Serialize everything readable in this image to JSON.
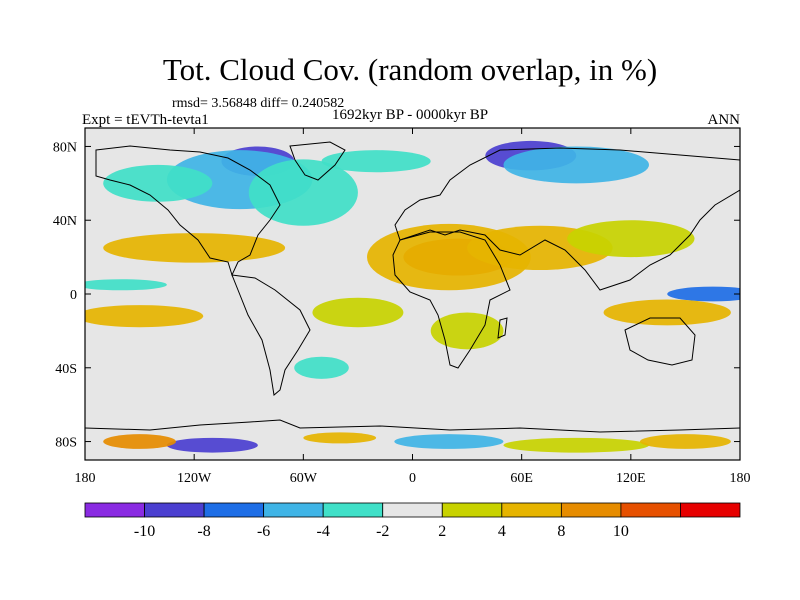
{
  "title": "Tot. Cloud Cov. (random overlap, in %)",
  "stats": "rmsd= 3.56848  diff= 0.240582",
  "experiment": "Expt = tEVTh-tevta1",
  "period": "1692kyr BP - 0000kyr BP",
  "season": "ANN",
  "map": {
    "projection": "cylindrical-equidistant",
    "lon_range": [
      -180,
      180
    ],
    "lat_range": [
      -90,
      90
    ],
    "lon_ticks": [
      {
        "value": -180,
        "label": "180"
      },
      {
        "value": -120,
        "label": "120W"
      },
      {
        "value": -60,
        "label": "60W"
      },
      {
        "value": 0,
        "label": "0"
      },
      {
        "value": 60,
        "label": "60E"
      },
      {
        "value": 120,
        "label": "120E"
      },
      {
        "value": 180,
        "label": "180"
      }
    ],
    "lat_ticks": [
      {
        "value": 80,
        "label": "80N"
      },
      {
        "value": 40,
        "label": "40N"
      },
      {
        "value": 0,
        "label": "0"
      },
      {
        "value": -40,
        "label": "40S"
      },
      {
        "value": -80,
        "label": "80S"
      }
    ],
    "background_color": "#e6e6e6",
    "anomaly_regions": [
      {
        "lon": -85,
        "lat": 72,
        "rlon": 20,
        "rlat": 8,
        "level": -10
      },
      {
        "lon": -95,
        "lat": 62,
        "rlon": 40,
        "rlat": 16,
        "level": -6
      },
      {
        "lon": -60,
        "lat": 55,
        "rlon": 30,
        "rlat": 18,
        "level": -4
      },
      {
        "lon": -140,
        "lat": 60,
        "rlon": 30,
        "rlat": 10,
        "level": -4
      },
      {
        "lon": 65,
        "lat": 75,
        "rlon": 25,
        "rlat": 8,
        "level": -10
      },
      {
        "lon": 90,
        "lat": 70,
        "rlon": 40,
        "rlat": 10,
        "level": -6
      },
      {
        "lon": -20,
        "lat": 72,
        "rlon": 30,
        "rlat": 6,
        "level": -3
      },
      {
        "lon": 25,
        "lat": 20,
        "rlon": 30,
        "rlat": 10,
        "level": 10
      },
      {
        "lon": 20,
        "lat": 20,
        "rlon": 45,
        "rlat": 18,
        "level": 6
      },
      {
        "lon": 70,
        "lat": 25,
        "rlon": 40,
        "rlat": 12,
        "level": 5
      },
      {
        "lon": 120,
        "lat": 30,
        "rlon": 35,
        "rlat": 10,
        "level": 3
      },
      {
        "lon": -120,
        "lat": 25,
        "rlon": 50,
        "rlat": 8,
        "level": 4
      },
      {
        "lon": -150,
        "lat": -12,
        "rlon": 35,
        "rlat": 6,
        "level": 6
      },
      {
        "lon": -160,
        "lat": 5,
        "rlon": 25,
        "rlat": 3,
        "level": -4
      },
      {
        "lon": 165,
        "lat": 0,
        "rlon": 25,
        "rlat": 4,
        "level": -8
      },
      {
        "lon": 140,
        "lat": -10,
        "rlon": 35,
        "rlat": 7,
        "level": 4
      },
      {
        "lon": -30,
        "lat": -10,
        "rlon": 25,
        "rlat": 8,
        "level": 3
      },
      {
        "lon": 30,
        "lat": -20,
        "rlon": 20,
        "rlat": 10,
        "level": 3
      },
      {
        "lon": -50,
        "lat": -40,
        "rlon": 15,
        "rlat": 6,
        "level": -3
      },
      {
        "lon": -110,
        "lat": -82,
        "rlon": 25,
        "rlat": 4,
        "level": -10
      },
      {
        "lon": -150,
        "lat": -80,
        "rlon": 20,
        "rlat": 4,
        "level": 8
      },
      {
        "lon": 20,
        "lat": -80,
        "rlon": 30,
        "rlat": 4,
        "level": -6
      },
      {
        "lon": 90,
        "lat": -82,
        "rlon": 40,
        "rlat": 4,
        "level": 3
      },
      {
        "lon": -40,
        "lat": -78,
        "rlon": 20,
        "rlat": 3,
        "level": 5
      },
      {
        "lon": 150,
        "lat": -80,
        "rlon": 25,
        "rlat": 4,
        "level": 4
      }
    ]
  },
  "colorbar": {
    "colors": [
      "#8a2be2",
      "#4b3fd0",
      "#1e6ee6",
      "#3fb4e6",
      "#40e0c8",
      "#e6e6e6",
      "#c8d200",
      "#e6b400",
      "#e68c00",
      "#e65000",
      "#e60000"
    ],
    "labels": [
      "-10",
      "-8",
      "-6",
      "-4",
      "-2",
      "2",
      "4",
      "8",
      "10"
    ]
  }
}
